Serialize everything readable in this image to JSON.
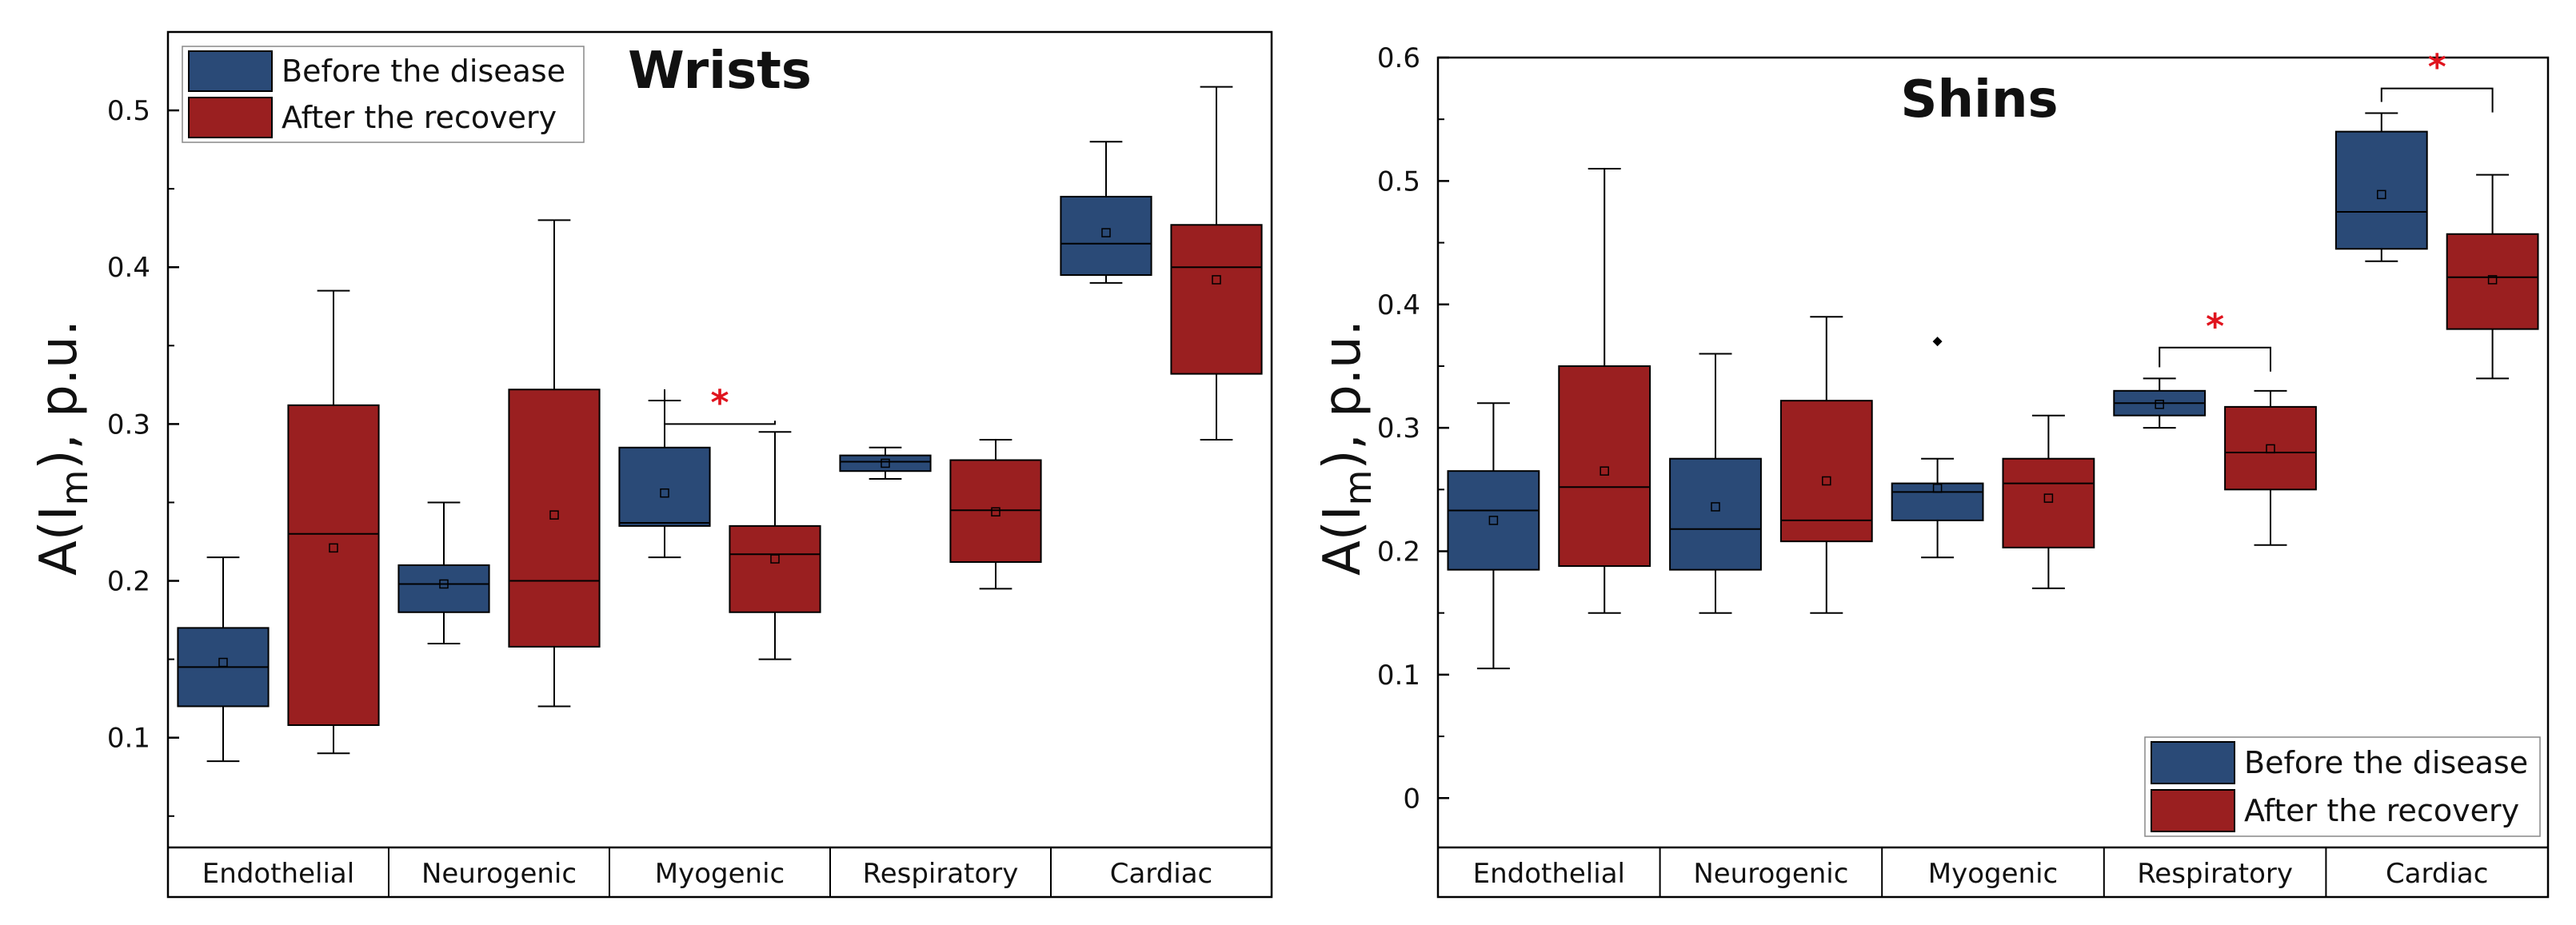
{
  "colors": {
    "before": "#2a4a77",
    "after": "#9a1f20",
    "axis": "#000000",
    "significance": "#e0141e"
  },
  "chart_data": [
    {
      "type": "boxplot",
      "title": "Wrists",
      "ylabel_main": "A(I",
      "ylabel_sub": "m",
      "ylabel_rest": "), p.u.",
      "ylim": [
        0.03,
        0.55
      ],
      "yticks": [
        "0.1",
        "0.2",
        "0.3",
        "0.4",
        "0.5"
      ],
      "categories": [
        "Endothelial",
        "Neurogenic",
        "Myogenic",
        "Respiratory",
        "Cardiac"
      ],
      "legend": {
        "position": "top-left",
        "before": "Before the disease",
        "after": "After the recovery"
      },
      "series": [
        {
          "name": "Before the disease",
          "color_key": "before",
          "boxes": [
            {
              "category": "Endothelial",
              "whisker_low": 0.085,
              "q1": 0.12,
              "median": 0.145,
              "q3": 0.17,
              "whisker_high": 0.215,
              "mean": 0.148,
              "outliers": []
            },
            {
              "category": "Neurogenic",
              "whisker_low": 0.16,
              "q1": 0.18,
              "median": 0.198,
              "q3": 0.21,
              "whisker_high": 0.25,
              "mean": 0.198,
              "outliers": []
            },
            {
              "category": "Myogenic",
              "whisker_low": 0.215,
              "q1": 0.235,
              "median": 0.237,
              "q3": 0.285,
              "whisker_high": 0.315,
              "mean": 0.256,
              "outliers": []
            },
            {
              "category": "Respiratory",
              "whisker_low": 0.265,
              "q1": 0.27,
              "median": 0.276,
              "q3": 0.28,
              "whisker_high": 0.285,
              "mean": 0.275,
              "outliers": []
            },
            {
              "category": "Cardiac",
              "whisker_low": 0.39,
              "q1": 0.395,
              "median": 0.415,
              "q3": 0.445,
              "whisker_high": 0.48,
              "mean": 0.422,
              "outliers": []
            }
          ]
        },
        {
          "name": "After the recovery",
          "color_key": "after",
          "boxes": [
            {
              "category": "Endothelial",
              "whisker_low": 0.09,
              "q1": 0.108,
              "median": 0.23,
              "q3": 0.312,
              "whisker_high": 0.385,
              "mean": 0.221,
              "outliers": []
            },
            {
              "category": "Neurogenic",
              "whisker_low": 0.12,
              "q1": 0.158,
              "median": 0.2,
              "q3": 0.322,
              "whisker_high": 0.43,
              "mean": 0.242,
              "outliers": []
            },
            {
              "category": "Myogenic",
              "whisker_low": 0.15,
              "q1": 0.18,
              "median": 0.217,
              "q3": 0.235,
              "whisker_high": 0.295,
              "mean": 0.214,
              "outliers": []
            },
            {
              "category": "Respiratory",
              "whisker_low": 0.195,
              "q1": 0.212,
              "median": 0.245,
              "q3": 0.277,
              "whisker_high": 0.29,
              "mean": 0.244,
              "outliers": []
            },
            {
              "category": "Cardiac",
              "whisker_low": 0.29,
              "q1": 0.332,
              "median": 0.4,
              "q3": 0.427,
              "whisker_high": 0.515,
              "mean": 0.392,
              "outliers": []
            }
          ]
        }
      ],
      "significance": [
        {
          "category": "Myogenic",
          "label": "*",
          "y": 0.3
        }
      ]
    },
    {
      "type": "boxplot",
      "title": "Shins",
      "ylabel_main": "A(I",
      "ylabel_sub": "m",
      "ylabel_rest": "), p.u.",
      "ylim": [
        -0.04,
        0.6
      ],
      "yticks": [
        "0",
        "0.1",
        "0.2",
        "0.3",
        "0.4",
        "0.5",
        "0.6"
      ],
      "categories": [
        "Endothelial",
        "Neurogenic",
        "Myogenic",
        "Respiratory",
        "Cardiac"
      ],
      "legend": {
        "position": "bottom-right",
        "before": "Before the disease",
        "after": "After the recovery"
      },
      "series": [
        {
          "name": "Before the disease",
          "color_key": "before",
          "boxes": [
            {
              "category": "Endothelial",
              "whisker_low": 0.105,
              "q1": 0.185,
              "median": 0.233,
              "q3": 0.265,
              "whisker_high": 0.32,
              "mean": 0.225,
              "outliers": []
            },
            {
              "category": "Neurogenic",
              "whisker_low": 0.15,
              "q1": 0.185,
              "median": 0.218,
              "q3": 0.275,
              "whisker_high": 0.36,
              "mean": 0.236,
              "outliers": []
            },
            {
              "category": "Myogenic",
              "whisker_low": 0.195,
              "q1": 0.225,
              "median": 0.248,
              "q3": 0.255,
              "whisker_high": 0.275,
              "mean": 0.251,
              "outliers": [
                0.37
              ]
            },
            {
              "category": "Respiratory",
              "whisker_low": 0.3,
              "q1": 0.31,
              "median": 0.32,
              "q3": 0.33,
              "whisker_high": 0.34,
              "mean": 0.319,
              "outliers": []
            },
            {
              "category": "Cardiac",
              "whisker_low": 0.435,
              "q1": 0.445,
              "median": 0.475,
              "q3": 0.54,
              "whisker_high": 0.555,
              "mean": 0.489,
              "outliers": []
            }
          ]
        },
        {
          "name": "After the recovery",
          "color_key": "after",
          "boxes": [
            {
              "category": "Endothelial",
              "whisker_low": 0.15,
              "q1": 0.188,
              "median": 0.252,
              "q3": 0.35,
              "whisker_high": 0.51,
              "mean": 0.265,
              "outliers": []
            },
            {
              "category": "Neurogenic",
              "whisker_low": 0.15,
              "q1": 0.208,
              "median": 0.225,
              "q3": 0.322,
              "whisker_high": 0.39,
              "mean": 0.257,
              "outliers": []
            },
            {
              "category": "Myogenic",
              "whisker_low": 0.17,
              "q1": 0.203,
              "median": 0.255,
              "q3": 0.275,
              "whisker_high": 0.31,
              "mean": 0.243,
              "outliers": []
            },
            {
              "category": "Respiratory",
              "whisker_low": 0.205,
              "q1": 0.25,
              "median": 0.28,
              "q3": 0.317,
              "whisker_high": 0.33,
              "mean": 0.283,
              "outliers": []
            },
            {
              "category": "Cardiac",
              "whisker_low": 0.34,
              "q1": 0.38,
              "median": 0.422,
              "q3": 0.457,
              "whisker_high": 0.505,
              "mean": 0.42,
              "outliers": []
            }
          ]
        }
      ],
      "significance": [
        {
          "category": "Respiratory",
          "label": "*",
          "y": 0.365
        },
        {
          "category": "Cardiac",
          "label": "*",
          "y": 0.575
        }
      ]
    }
  ]
}
